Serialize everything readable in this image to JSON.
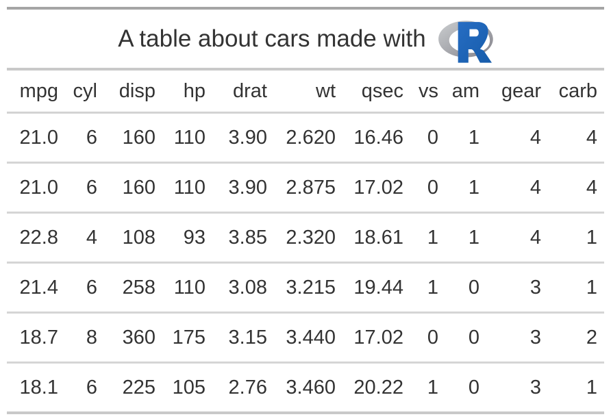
{
  "title": {
    "text": "A table about cars made with",
    "logo": "R-logo"
  },
  "table": {
    "columns": [
      "mpg",
      "cyl",
      "disp",
      "hp",
      "drat",
      "wt",
      "qsec",
      "vs",
      "am",
      "gear",
      "carb"
    ],
    "rows": [
      [
        "21.0",
        "6",
        "160",
        "110",
        "3.90",
        "2.620",
        "16.46",
        "0",
        "1",
        "4",
        "4"
      ],
      [
        "21.0",
        "6",
        "160",
        "110",
        "3.90",
        "2.875",
        "17.02",
        "0",
        "1",
        "4",
        "4"
      ],
      [
        "22.8",
        "4",
        "108",
        "93",
        "3.85",
        "2.320",
        "18.61",
        "1",
        "1",
        "4",
        "1"
      ],
      [
        "21.4",
        "6",
        "258",
        "110",
        "3.08",
        "3.215",
        "19.44",
        "1",
        "0",
        "3",
        "1"
      ],
      [
        "18.7",
        "8",
        "360",
        "175",
        "3.15",
        "3.440",
        "17.02",
        "0",
        "0",
        "3",
        "2"
      ],
      [
        "18.1",
        "6",
        "225",
        "105",
        "2.76",
        "3.460",
        "20.22",
        "1",
        "0",
        "3",
        "1"
      ]
    ]
  },
  "colors": {
    "text": "#333333",
    "border_top": "#A5A5A5",
    "border_heavy": "#C9C9C9",
    "border_light": "#D5D5D5",
    "logo_blue": "#276DC3",
    "logo_blue_dark": "#165CAA",
    "logo_gray_light": "#CBCED0",
    "logo_gray_dark": "#84838B"
  }
}
